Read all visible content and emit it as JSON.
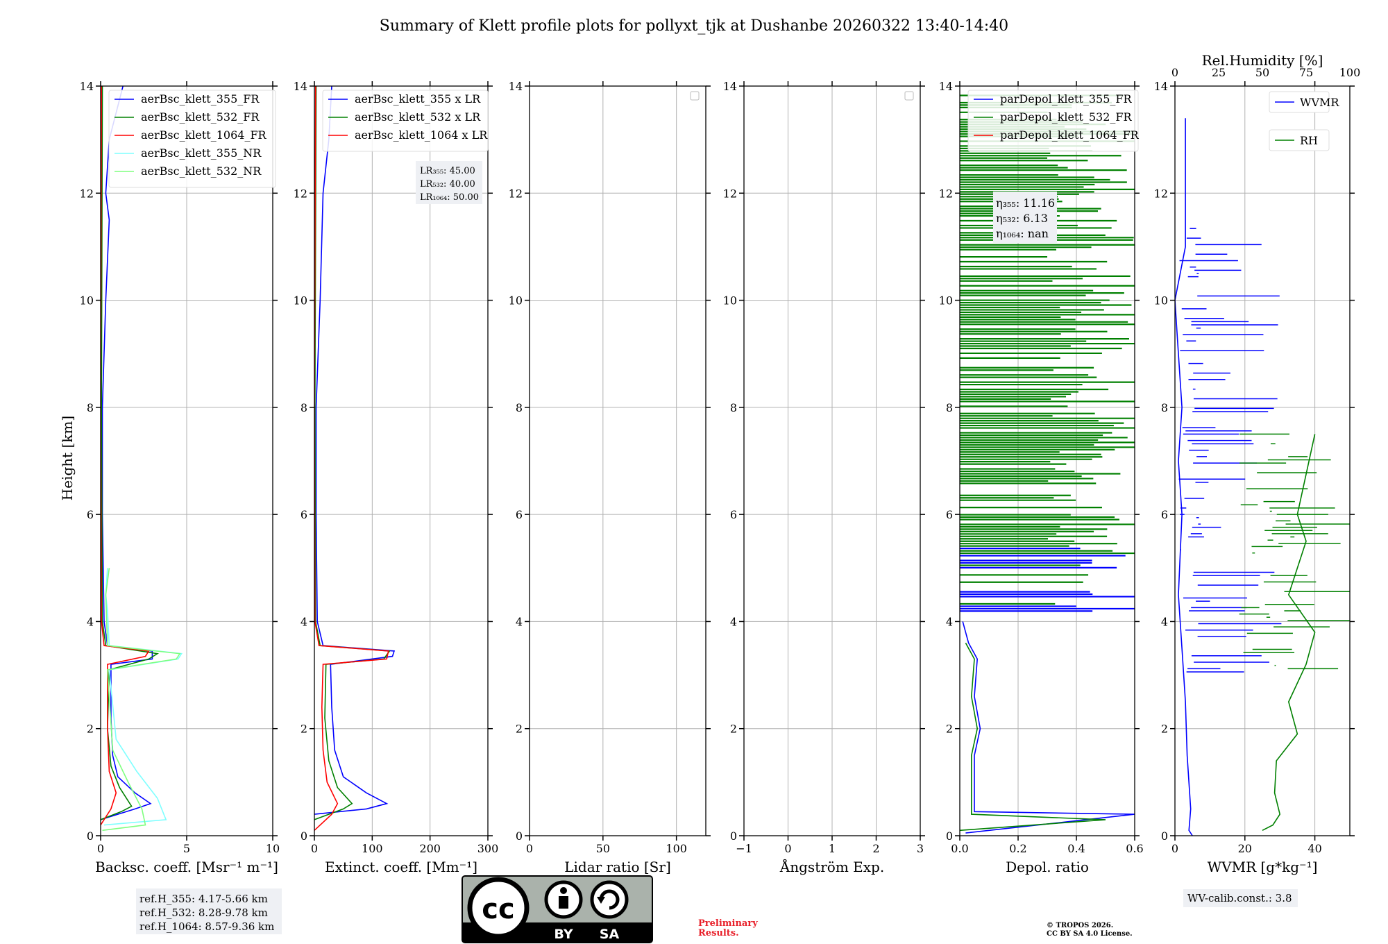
{
  "title": "Summary of Klett profile plots for pollyxt_tjk at Dushanbe 20260322 13:40-14:40",
  "y_axis_label": "Height [km]",
  "colors": {
    "blue": "#0000ff",
    "green": "#008000",
    "red": "#ff0000",
    "cyan": "#7fffff",
    "lightgreen": "#7fff7f"
  },
  "chart_data": [
    {
      "id": "backscatter",
      "type": "line",
      "xlabel": "Backsc. coeff. [Msr⁻¹ m⁻¹]",
      "ylabel": "Height [km]",
      "xlim": [
        0,
        10
      ],
      "ylim": [
        0,
        14
      ],
      "xticks": [
        "0",
        "5",
        "10"
      ],
      "yticks": [
        "0",
        "2",
        "4",
        "6",
        "8",
        "10",
        "12",
        "14"
      ],
      "legend": [
        "aerBsc_klett_355_FR",
        "aerBsc_klett_532_FR",
        "aerBsc_klett_1064_FR",
        "aerBsc_klett_355_NR",
        "aerBsc_klett_532_NR"
      ],
      "series": [
        {
          "name": "aerBsc_klett_355_FR",
          "color": "#0000ff",
          "points": [
            [
              0,
              0.3
            ],
            [
              2,
              0.5
            ],
            [
              2.9,
              0.6
            ],
            [
              2,
              0.8
            ],
            [
              1,
              1.1
            ],
            [
              0.7,
              1.5
            ],
            [
              0.6,
              2.2
            ],
            [
              0.6,
              3.2
            ],
            [
              3.0,
              3.3
            ],
            [
              3.0,
              3.45
            ],
            [
              0.4,
              3.55
            ],
            [
              0.2,
              4.0
            ],
            [
              0.1,
              6
            ],
            [
              0.1,
              8
            ],
            [
              0.3,
              10
            ],
            [
              0.5,
              11.5
            ],
            [
              0.3,
              12
            ],
            [
              0.5,
              13
            ],
            [
              1.3,
              14
            ]
          ]
        },
        {
          "name": "aerBsc_klett_532_FR",
          "color": "#008000",
          "points": [
            [
              0,
              0.3
            ],
            [
              1.2,
              0.45
            ],
            [
              1.8,
              0.55
            ],
            [
              1.1,
              0.9
            ],
            [
              0.6,
              1.3
            ],
            [
              0.4,
              2.0
            ],
            [
              0.5,
              3.1
            ],
            [
              2.8,
              3.3
            ],
            [
              3.3,
              3.4
            ],
            [
              0.3,
              3.55
            ],
            [
              0.1,
              4
            ],
            [
              0.05,
              8
            ],
            [
              0.1,
              14
            ]
          ]
        },
        {
          "name": "aerBsc_klett_1064_FR",
          "color": "#ff0000",
          "points": [
            [
              0,
              0.2
            ],
            [
              0.6,
              0.5
            ],
            [
              0.9,
              0.8
            ],
            [
              0.5,
              1.2
            ],
            [
              0.4,
              2.0
            ],
            [
              0.4,
              3.2
            ],
            [
              2.6,
              3.35
            ],
            [
              2.8,
              3.45
            ],
            [
              0.2,
              3.55
            ],
            [
              0.05,
              4
            ],
            [
              0,
              8
            ],
            [
              0.05,
              14
            ]
          ]
        },
        {
          "name": "aerBsc_klett_355_NR",
          "color": "#7fffff",
          "points": [
            [
              0.2,
              0.2
            ],
            [
              3.8,
              0.3
            ],
            [
              3.3,
              0.7
            ],
            [
              2.1,
              1.2
            ],
            [
              0.9,
              1.8
            ],
            [
              0.5,
              3.1
            ],
            [
              4.5,
              3.3
            ],
            [
              4.7,
              3.4
            ],
            [
              0.5,
              3.55
            ],
            [
              0.4,
              4.2
            ],
            [
              0.3,
              4.5
            ],
            [
              0.4,
              5.0
            ]
          ]
        },
        {
          "name": "aerBsc_klett_532_NR",
          "color": "#7fff7f",
          "points": [
            [
              0.1,
              0.1
            ],
            [
              2.6,
              0.2
            ],
            [
              2.4,
              0.5
            ],
            [
              1.6,
              1.0
            ],
            [
              0.7,
              1.6
            ],
            [
              0.4,
              3.1
            ],
            [
              4.4,
              3.3
            ],
            [
              4.6,
              3.4
            ],
            [
              0.4,
              3.55
            ],
            [
              0.3,
              4.5
            ],
            [
              0.5,
              5.0
            ]
          ]
        }
      ],
      "annotations": [
        "ref.H_355: 4.17-5.66 km",
        "ref.H_532: 8.28-9.78 km",
        "ref.H_1064: 8.57-9.36 km"
      ]
    },
    {
      "id": "extinction",
      "type": "line",
      "xlabel": "Extinct. coeff. [Mm⁻¹]",
      "xlim": [
        0,
        300
      ],
      "ylim": [
        0,
        14
      ],
      "xticks": [
        "0",
        "100",
        "200",
        "300"
      ],
      "yticks": [
        "0",
        "2",
        "4",
        "6",
        "8",
        "10",
        "12",
        "14"
      ],
      "legend": [
        "aerBsc_klett_355 x LR",
        "aerBsc_klett_532 x LR",
        "aerBsc_klett_1064 x LR"
      ],
      "series": [
        {
          "name": "aerBsc_klett_355 x LR",
          "color": "#0000ff",
          "points": [
            [
              0,
              0.4
            ],
            [
              90,
              0.5
            ],
            [
              125,
              0.6
            ],
            [
              90,
              0.8
            ],
            [
              50,
              1.1
            ],
            [
              35,
              1.6
            ],
            [
              30,
              2.4
            ],
            [
              28,
              3.2
            ],
            [
              135,
              3.35
            ],
            [
              138,
              3.45
            ],
            [
              15,
              3.55
            ],
            [
              5,
              4.0
            ],
            [
              3,
              6
            ],
            [
              3,
              8
            ],
            [
              10,
              10
            ],
            [
              15,
              12
            ],
            [
              25,
              13
            ],
            [
              30,
              14
            ]
          ]
        },
        {
          "name": "aerBsc_klett_532 x LR",
          "color": "#008000",
          "points": [
            [
              0,
              0.3
            ],
            [
              50,
              0.5
            ],
            [
              65,
              0.6
            ],
            [
              40,
              0.9
            ],
            [
              25,
              1.4
            ],
            [
              18,
              2.2
            ],
            [
              20,
              3.2
            ],
            [
              120,
              3.3
            ],
            [
              130,
              3.45
            ],
            [
              10,
              3.55
            ],
            [
              2,
              4
            ],
            [
              1,
              8
            ],
            [
              3,
              14
            ]
          ]
        },
        {
          "name": "aerBsc_klett_1064 x LR",
          "color": "#ff0000",
          "points": [
            [
              0,
              0.1
            ],
            [
              30,
              0.4
            ],
            [
              40,
              0.6
            ],
            [
              22,
              1.0
            ],
            [
              15,
              1.6
            ],
            [
              13,
              2.4
            ],
            [
              15,
              3.2
            ],
            [
              125,
              3.3
            ],
            [
              128,
              3.45
            ],
            [
              8,
              3.55
            ],
            [
              1,
              4
            ],
            [
              0,
              8
            ],
            [
              2,
              14
            ]
          ]
        }
      ],
      "annotations": [
        "LR₃₅₅: 45.00",
        "LR₅₃₂: 40.00",
        "LR₁₀₆₄: 50.00"
      ]
    },
    {
      "id": "lidar_ratio",
      "type": "line",
      "xlabel": "Lidar ratio [Sr]",
      "xlim": [
        0,
        120
      ],
      "ylim": [
        0,
        14
      ],
      "xticks": [
        "0",
        "50",
        "100"
      ],
      "yticks": [
        "0",
        "2",
        "4",
        "6",
        "8",
        "10",
        "12",
        "14"
      ],
      "series": []
    },
    {
      "id": "angstrom",
      "type": "line",
      "xlabel": "Ångström Exp.",
      "xlim": [
        -1,
        3
      ],
      "ylim": [
        0,
        14
      ],
      "xticks": [
        "−1",
        "0",
        "1",
        "2",
        "3"
      ],
      "yticks": [
        "0",
        "2",
        "4",
        "6",
        "8",
        "10",
        "12",
        "14"
      ],
      "series": []
    },
    {
      "id": "depol",
      "type": "line",
      "xlabel": "Depol. ratio",
      "xlim": [
        0,
        0.6
      ],
      "ylim": [
        0,
        14
      ],
      "xticks": [
        "0.0",
        "0.2",
        "0.4",
        "0.6"
      ],
      "yticks": [
        "0",
        "2",
        "4",
        "6",
        "8",
        "10",
        "12",
        "14"
      ],
      "legend": [
        "parDepol_klett_355_FR",
        "parDepol_klett_532_FR",
        "parDepol_klett_1064_FR"
      ],
      "series": [
        {
          "name": "parDepol_klett_355_FR",
          "color": "#0000ff",
          "points": [
            [
              0.02,
              0.05
            ],
            [
              0.6,
              0.4
            ],
            [
              0.05,
              0.45
            ],
            [
              0.05,
              1.5
            ],
            [
              0.07,
              2.0
            ],
            [
              0.05,
              2.6
            ],
            [
              0.06,
              3.3
            ],
            [
              0.03,
              3.6
            ],
            [
              0.01,
              4.0
            ]
          ]
        },
        {
          "name": "parDepol_klett_532_FR",
          "color": "#008000",
          "points": [
            [
              0.0,
              0.1
            ],
            [
              0.5,
              0.3
            ],
            [
              0.04,
              0.4
            ],
            [
              0.04,
              1.5
            ],
            [
              0.06,
              2.0
            ],
            [
              0.04,
              2.6
            ],
            [
              0.05,
              3.3
            ],
            [
              0.02,
              3.6
            ]
          ]
        }
      ],
      "annotations": [
        "η₃₅₅: 11.16",
        "η₅₃₂: 6.13",
        "η₁₀₆₄: nan"
      ]
    },
    {
      "id": "wvmr",
      "type": "line",
      "xlabel": "WVMR [g*kg⁻¹]",
      "xlim": [
        0,
        50
      ],
      "ylim": [
        0,
        14
      ],
      "xticks": [
        "0",
        "20",
        "40"
      ],
      "yticks": [
        "0",
        "2",
        "4",
        "6",
        "8",
        "10",
        "12",
        "14"
      ],
      "top_xlabel": "Rel.Humidity [%]",
      "top_xlim": [
        0,
        100
      ],
      "top_xticks": [
        "0",
        "25",
        "50",
        "75",
        "100"
      ],
      "legend": [
        "WVMR",
        "RH"
      ],
      "series": [
        {
          "name": "WVMR",
          "color": "#0000ff",
          "points": [
            [
              5,
              0.0
            ],
            [
              4,
              0.1
            ],
            [
              4.5,
              0.5
            ],
            [
              3.5,
              1.5
            ],
            [
              3,
              2.5
            ],
            [
              2,
              3.5
            ],
            [
              1,
              4.5
            ],
            [
              2,
              6
            ],
            [
              1,
              7
            ],
            [
              2,
              8
            ],
            [
              1,
              9
            ],
            [
              0,
              10
            ],
            [
              3,
              11
            ],
            [
              3,
              13.4
            ]
          ]
        },
        {
          "name": "RH",
          "color": "#008000",
          "points": [
            [
              50,
              0.1
            ],
            [
              56,
              0.2
            ],
            [
              60,
              0.4
            ],
            [
              57,
              0.8
            ],
            [
              58,
              1.4
            ],
            [
              70,
              1.9
            ],
            [
              65,
              2.5
            ],
            [
              75,
              3.2
            ],
            [
              80,
              3.8
            ],
            [
              65,
              4.5
            ],
            [
              75,
              5.5
            ],
            [
              70,
              6
            ],
            [
              80,
              7.5
            ]
          ]
        }
      ],
      "annotations": [
        "WV-calib.const.: 3.8"
      ]
    }
  ],
  "footer": {
    "preliminary": [
      "Preliminary",
      "Results."
    ],
    "copyright": [
      "© TROPOS 2026.",
      "CC BY SA 4.0 License."
    ],
    "cc_badge": {
      "cc": "cc",
      "by": "BY",
      "sa": "SA"
    }
  }
}
